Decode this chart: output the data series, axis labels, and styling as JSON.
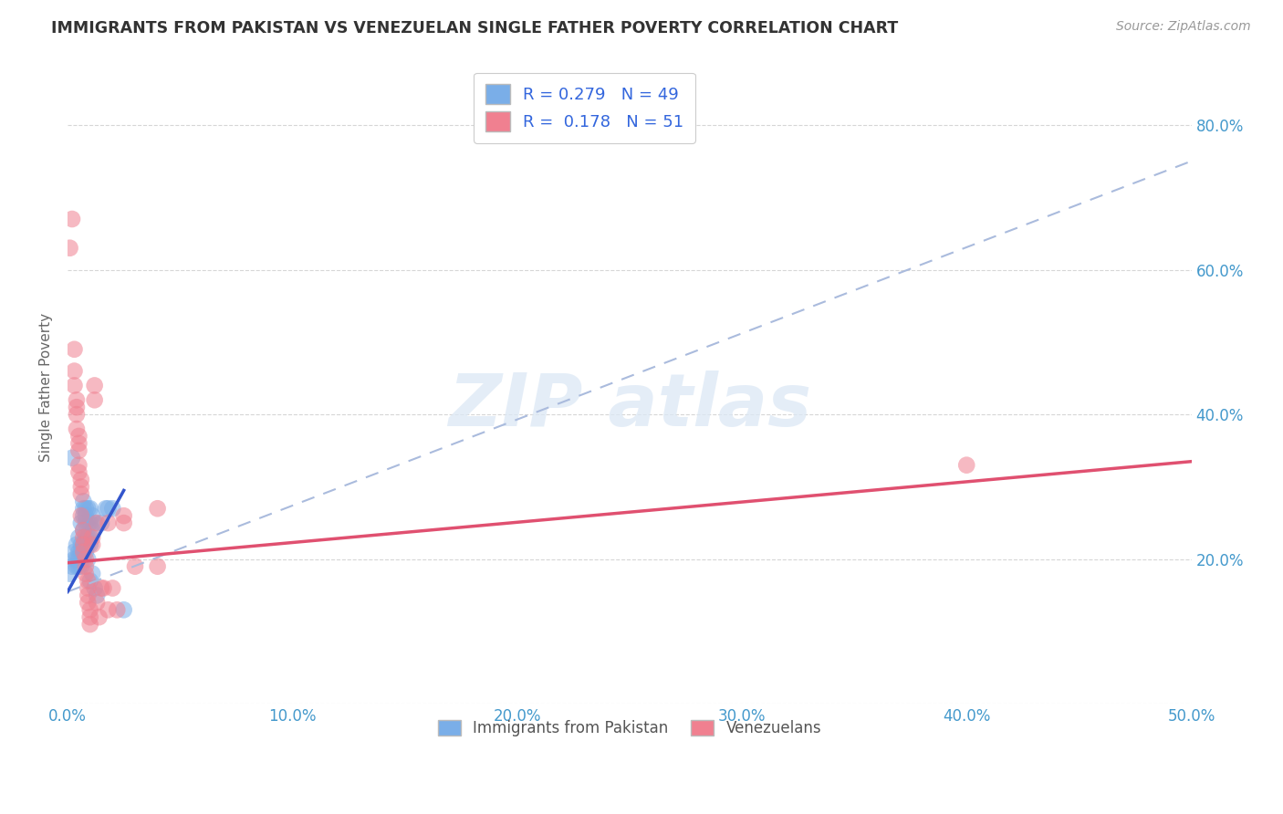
{
  "title": "IMMIGRANTS FROM PAKISTAN VS VENEZUELAN SINGLE FATHER POVERTY CORRELATION CHART",
  "source": "Source: ZipAtlas.com",
  "ylabel": "Single Father Poverty",
  "y_ticks": [
    0.0,
    0.2,
    0.4,
    0.6,
    0.8
  ],
  "y_tick_labels": [
    "",
    "20.0%",
    "40.0%",
    "60.0%",
    "80.0%"
  ],
  "x_range": [
    0.0,
    0.5
  ],
  "y_range": [
    0.0,
    0.875
  ],
  "legend_label_1": "Immigrants from Pakistan",
  "legend_label_2": "Venezuelans",
  "pakistan_color": "#7aaee8",
  "venezuela_color": "#f08090",
  "pakistan_trend_color": "#3355cc",
  "venezuela_trend_color": "#e05070",
  "dashed_trend_color": "#aabbdd",
  "pakistan_points": [
    [
      0.001,
      0.18
    ],
    [
      0.002,
      0.19
    ],
    [
      0.003,
      0.21
    ],
    [
      0.003,
      0.2
    ],
    [
      0.004,
      0.22
    ],
    [
      0.004,
      0.2
    ],
    [
      0.004,
      0.19
    ],
    [
      0.005,
      0.23
    ],
    [
      0.005,
      0.21
    ],
    [
      0.005,
      0.2
    ],
    [
      0.005,
      0.19
    ],
    [
      0.006,
      0.25
    ],
    [
      0.006,
      0.22
    ],
    [
      0.006,
      0.21
    ],
    [
      0.006,
      0.19
    ],
    [
      0.007,
      0.28
    ],
    [
      0.007,
      0.27
    ],
    [
      0.007,
      0.26
    ],
    [
      0.007,
      0.24
    ],
    [
      0.007,
      0.22
    ],
    [
      0.007,
      0.21
    ],
    [
      0.007,
      0.2
    ],
    [
      0.008,
      0.27
    ],
    [
      0.008,
      0.26
    ],
    [
      0.008,
      0.25
    ],
    [
      0.008,
      0.23
    ],
    [
      0.008,
      0.21
    ],
    [
      0.009,
      0.27
    ],
    [
      0.009,
      0.25
    ],
    [
      0.009,
      0.23
    ],
    [
      0.009,
      0.22
    ],
    [
      0.009,
      0.2
    ],
    [
      0.01,
      0.27
    ],
    [
      0.01,
      0.25
    ],
    [
      0.01,
      0.23
    ],
    [
      0.01,
      0.22
    ],
    [
      0.01,
      0.17
    ],
    [
      0.011,
      0.26
    ],
    [
      0.011,
      0.24
    ],
    [
      0.011,
      0.18
    ],
    [
      0.012,
      0.25
    ],
    [
      0.012,
      0.16
    ],
    [
      0.013,
      0.15
    ],
    [
      0.015,
      0.25
    ],
    [
      0.017,
      0.27
    ],
    [
      0.018,
      0.27
    ],
    [
      0.02,
      0.27
    ],
    [
      0.002,
      0.34
    ],
    [
      0.025,
      0.13
    ]
  ],
  "venezuela_points": [
    [
      0.001,
      0.63
    ],
    [
      0.002,
      0.67
    ],
    [
      0.003,
      0.49
    ],
    [
      0.003,
      0.46
    ],
    [
      0.003,
      0.44
    ],
    [
      0.004,
      0.42
    ],
    [
      0.004,
      0.41
    ],
    [
      0.004,
      0.4
    ],
    [
      0.004,
      0.38
    ],
    [
      0.005,
      0.37
    ],
    [
      0.005,
      0.36
    ],
    [
      0.005,
      0.35
    ],
    [
      0.005,
      0.33
    ],
    [
      0.005,
      0.32
    ],
    [
      0.006,
      0.31
    ],
    [
      0.006,
      0.3
    ],
    [
      0.006,
      0.29
    ],
    [
      0.006,
      0.26
    ],
    [
      0.007,
      0.24
    ],
    [
      0.007,
      0.23
    ],
    [
      0.007,
      0.22
    ],
    [
      0.007,
      0.21
    ],
    [
      0.008,
      0.2
    ],
    [
      0.008,
      0.19
    ],
    [
      0.008,
      0.18
    ],
    [
      0.009,
      0.17
    ],
    [
      0.009,
      0.16
    ],
    [
      0.009,
      0.15
    ],
    [
      0.009,
      0.14
    ],
    [
      0.01,
      0.13
    ],
    [
      0.01,
      0.12
    ],
    [
      0.01,
      0.11
    ],
    [
      0.011,
      0.23
    ],
    [
      0.011,
      0.22
    ],
    [
      0.012,
      0.44
    ],
    [
      0.012,
      0.42
    ],
    [
      0.013,
      0.25
    ],
    [
      0.013,
      0.14
    ],
    [
      0.014,
      0.12
    ],
    [
      0.015,
      0.16
    ],
    [
      0.016,
      0.16
    ],
    [
      0.018,
      0.25
    ],
    [
      0.018,
      0.13
    ],
    [
      0.02,
      0.16
    ],
    [
      0.022,
      0.13
    ],
    [
      0.025,
      0.26
    ],
    [
      0.025,
      0.25
    ],
    [
      0.03,
      0.19
    ],
    [
      0.04,
      0.27
    ],
    [
      0.04,
      0.19
    ],
    [
      0.4,
      0.33
    ]
  ],
  "pak_trend_x0": 0.0,
  "pak_trend_y0": 0.155,
  "pak_trend_x1": 0.025,
  "pak_trend_y1": 0.295,
  "ven_trend_x0": 0.0,
  "ven_trend_y0": 0.195,
  "ven_trend_x1": 0.5,
  "ven_trend_y1": 0.335,
  "dash_trend_x0": 0.0,
  "dash_trend_y0": 0.155,
  "dash_trend_x1": 0.5,
  "dash_trend_y1": 0.75
}
